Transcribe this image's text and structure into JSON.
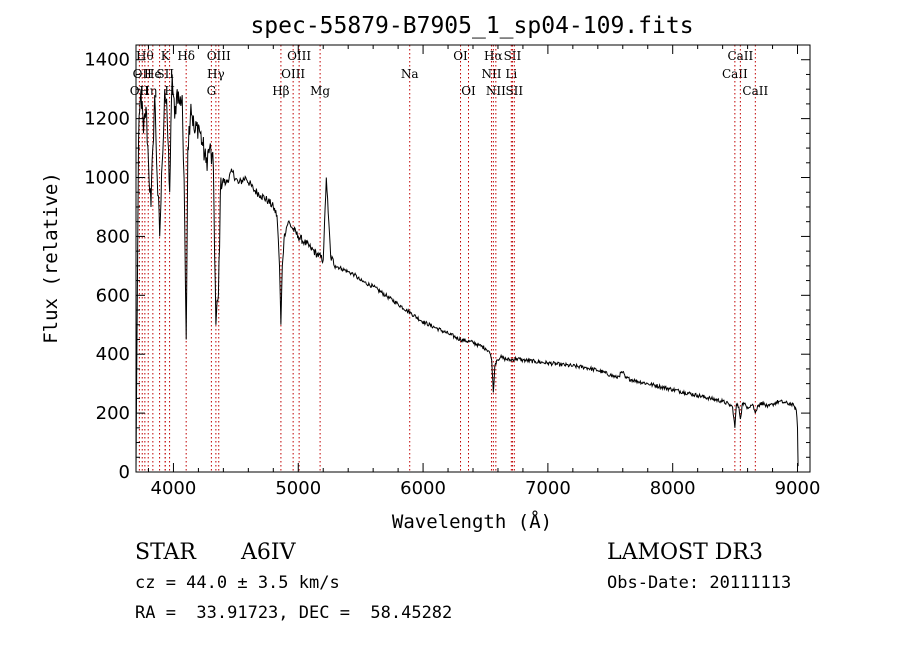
{
  "chart_data": {
    "type": "line",
    "title": "spec-55879-B7905_1_sp04-109.fits",
    "xlabel": "Wavelength (Å)",
    "ylabel": "Flux (relative)",
    "xlim": [
      3700,
      9100
    ],
    "ylim": [
      0,
      1450
    ],
    "xticks": [
      4000,
      5000,
      6000,
      7000,
      8000,
      9000
    ],
    "yticks": [
      0,
      200,
      400,
      600,
      800,
      1000,
      1200,
      1400
    ],
    "series": [
      {
        "name": "flux",
        "x": [
          3700,
          3720,
          3740,
          3760,
          3780,
          3800,
          3820,
          3835,
          3850,
          3870,
          3890,
          3910,
          3930,
          3950,
          3970,
          3990,
          4010,
          4030,
          4050,
          4070,
          4090,
          4102,
          4115,
          4140,
          4170,
          4200,
          4230,
          4260,
          4290,
          4320,
          4340,
          4360,
          4380,
          4420,
          4470,
          4520,
          4580,
          4640,
          4700,
          4760,
          4800,
          4830,
          4850,
          4861,
          4872,
          4890,
          4920,
          4950,
          5000,
          5050,
          5100,
          5150,
          5200,
          5225,
          5240,
          5260,
          5300,
          5350,
          5400,
          5450,
          5500,
          5600,
          5700,
          5800,
          5900,
          6000,
          6100,
          6200,
          6300,
          6400,
          6450,
          6500,
          6530,
          6550,
          6563,
          6575,
          6590,
          6620,
          6650,
          6700,
          6750,
          6800,
          6900,
          7000,
          7100,
          7200,
          7300,
          7400,
          7500,
          7550,
          7600,
          7620,
          7700,
          7800,
          7900,
          8000,
          8100,
          8200,
          8300,
          8400,
          8450,
          8480,
          8498,
          8510,
          8530,
          8542,
          8560,
          8600,
          8640,
          8662,
          8680,
          8720,
          8760,
          8800,
          8850,
          8900,
          8950,
          8970,
          8990,
          9000,
          9005
        ],
        "y": [
          0,
          1120,
          1300,
          1150,
          1240,
          1050,
          900,
          1100,
          1280,
          1000,
          800,
          1050,
          1300,
          1200,
          950,
          1350,
          1200,
          1300,
          1250,
          1280,
          850,
          450,
          1100,
          1250,
          1150,
          1180,
          1120,
          1050,
          1100,
          1030,
          500,
          600,
          1000,
          980,
          1020,
          980,
          1000,
          960,
          940,
          920,
          900,
          870,
          700,
          500,
          700,
          810,
          850,
          830,
          800,
          780,
          760,
          740,
          720,
          1000,
          880,
          730,
          700,
          690,
          680,
          670,
          650,
          630,
          600,
          570,
          540,
          510,
          490,
          470,
          450,
          440,
          430,
          420,
          410,
          380,
          270,
          360,
          380,
          390,
          385,
          380,
          385,
          380,
          375,
          370,
          365,
          360,
          355,
          345,
          330,
          320,
          340,
          320,
          310,
          300,
          290,
          280,
          270,
          260,
          250,
          240,
          230,
          220,
          150,
          230,
          220,
          180,
          235,
          220,
          230,
          200,
          225,
          235,
          220,
          230,
          240,
          235,
          230,
          225,
          210,
          150,
          20
        ]
      }
    ],
    "spectral_lines": [
      {
        "w": 3727,
        "label": "OII",
        "row": 3
      },
      {
        "w": 3750,
        "label": "OII",
        "row": 2
      },
      {
        "w": 3771,
        "label": "Hθ",
        "row": 1
      },
      {
        "w": 3798,
        "label": "Hη",
        "row": 3
      },
      {
        "w": 3835,
        "label": "He",
        "row": 2
      },
      {
        "w": 3889,
        "label": "",
        "row": 0
      },
      {
        "w": 3934,
        "label": "K",
        "row": 1
      },
      {
        "w": 3934,
        "label": "SII",
        "row": 2
      },
      {
        "w": 3969,
        "label": "H",
        "row": 3
      },
      {
        "w": 4102,
        "label": "Hδ",
        "row": 1
      },
      {
        "w": 4304,
        "label": "G",
        "row": 3
      },
      {
        "w": 4340,
        "label": "Hγ",
        "row": 2
      },
      {
        "w": 4363,
        "label": "OIII",
        "row": 1
      },
      {
        "w": 4861,
        "label": "Hβ",
        "row": 3
      },
      {
        "w": 4959,
        "label": "OIII",
        "row": 2
      },
      {
        "w": 5007,
        "label": "OIII",
        "row": 1
      },
      {
        "w": 5175,
        "label": "Mg",
        "row": 3
      },
      {
        "w": 5893,
        "label": "Na",
        "row": 2
      },
      {
        "w": 6300,
        "label": "OI",
        "row": 1
      },
      {
        "w": 6364,
        "label": "OI",
        "row": 3
      },
      {
        "w": 6548,
        "label": "NII",
        "row": 2
      },
      {
        "w": 6563,
        "label": "Hα",
        "row": 1
      },
      {
        "w": 6583,
        "label": "NII",
        "row": 3
      },
      {
        "w": 6707,
        "label": "Li",
        "row": 2
      },
      {
        "w": 6716,
        "label": "SII",
        "row": 1
      },
      {
        "w": 6731,
        "label": "SII",
        "row": 3
      },
      {
        "w": 8498,
        "label": "CaII",
        "row": 2
      },
      {
        "w": 8542,
        "label": "CaII",
        "row": 1
      },
      {
        "w": 8662,
        "label": "CaII",
        "row": 3
      }
    ]
  },
  "info": {
    "class": "STAR",
    "subclass": "A6IV",
    "survey": "LAMOST DR3",
    "cz": "cz = 44.0 ± 3.5 km/s",
    "obs_date": "Obs-Date: 20111113",
    "coords": "RA =  33.91723, DEC =  58.45282"
  }
}
